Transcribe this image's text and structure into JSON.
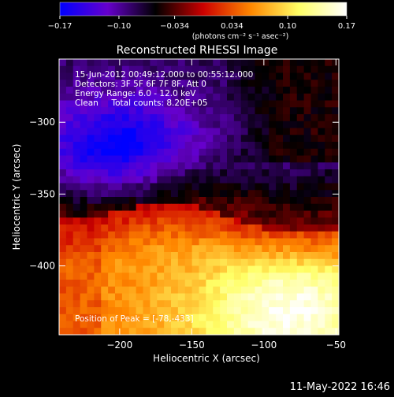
{
  "chart_data": {
    "type": "heatmap",
    "title": "Reconstructed RHESSI Image",
    "xlabel": "Heliocentric X (arcsec)",
    "ylabel": "Heliocentric Y (arcsec)",
    "xlim": [
      -242,
      -48
    ],
    "ylim": [
      -448,
      -256
    ],
    "x_ticks": [
      -200,
      -150,
      -100,
      -50
    ],
    "x_tick_labels": [
      "−200",
      "−150",
      "−100",
      "−50"
    ],
    "y_ticks": [
      -300,
      -350,
      -400
    ],
    "y_tick_labels": [
      "−300",
      "−350",
      "−400"
    ],
    "colorbar": {
      "range": [
        -0.17,
        0.17
      ],
      "ticks": [
        -0.17,
        -0.1,
        -0.034,
        0.034,
        0.1,
        0.17
      ],
      "tick_labels": [
        "−0.17",
        "−0.10",
        "−0.034",
        "0.034",
        "0.10",
        "0.17"
      ],
      "unit_label": "(photons cm⁻² s⁻¹ asec⁻²)",
      "stops": [
        "#0000ff",
        "#6600cc",
        "#000000",
        "#cc0000",
        "#ff8800",
        "#ffff66",
        "#ffffff"
      ]
    },
    "annotations": [
      "15-Jun-2012 00:49:12.000 to 00:55:12.000",
      "Detectors: 3F 5F 6F 7F 8F, Att 0",
      "Energy Range: 6.0 - 12.0 keV",
      "Clean     Total counts: 8.20E+05",
      "Position of Peak = [-78,-433]"
    ],
    "peak": [
      -78,
      -433
    ]
  },
  "footer": {
    "date": "11-May-2022 16:46"
  }
}
